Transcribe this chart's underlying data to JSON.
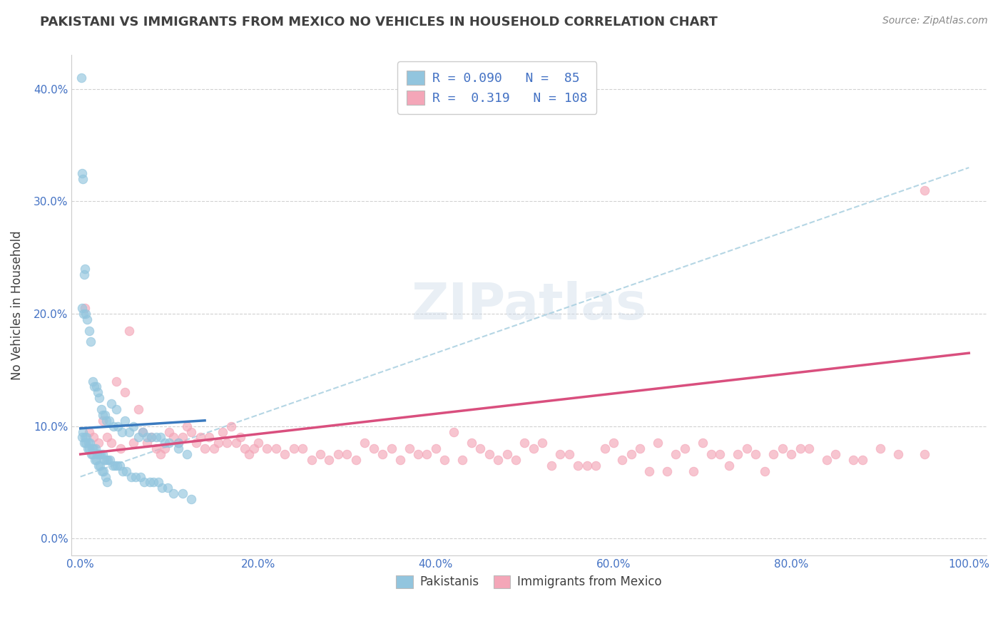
{
  "title": "PAKISTANI VS IMMIGRANTS FROM MEXICO NO VEHICLES IN HOUSEHOLD CORRELATION CHART",
  "source": "Source: ZipAtlas.com",
  "ylabel": "No Vehicles in Household",
  "watermark": "ZIPatlas",
  "blue_color": "#92c5de",
  "pink_color": "#f4a6b8",
  "blue_line_color": "#3a7abf",
  "pink_line_color": "#d94f7e",
  "blue_dash_color": "#a8cfe0",
  "title_color": "#404040",
  "source_color": "#888888",
  "axis_label_color": "#404040",
  "tick_color": "#4472c4",
  "grid_color": "#cccccc",
  "xlim": [
    -1,
    102
  ],
  "ylim": [
    -1.5,
    43
  ],
  "xlabel_tick_vals": [
    0,
    20,
    40,
    60,
    80,
    100
  ],
  "xlabel_ticks": [
    "0.0%",
    "20.0%",
    "40.0%",
    "60.0%",
    "80.0%",
    "100.0%"
  ],
  "ylabel_tick_vals": [
    0,
    10,
    20,
    30,
    40
  ],
  "ylabel_ticks": [
    "0.0%",
    "10.0%",
    "20.0%",
    "30.0%",
    "40.0%"
  ],
  "pakistanis_x": [
    0.3,
    0.5,
    0.7,
    0.9,
    1.1,
    1.3,
    1.5,
    1.7,
    1.9,
    2.1,
    2.3,
    2.5,
    2.7,
    2.9,
    3.1,
    3.3,
    3.6,
    3.9,
    4.1,
    4.4,
    4.8,
    5.2,
    5.7,
    6.2,
    6.8,
    7.2,
    7.8,
    8.2,
    8.8,
    9.2,
    9.8,
    10.5,
    11.5,
    12.5,
    0.2,
    0.4,
    0.6,
    0.8,
    1.0,
    1.2,
    1.4,
    1.6,
    1.8,
    2.0,
    2.2,
    2.4,
    2.6,
    2.8,
    3.0,
    3.5,
    4.0,
    5.0,
    6.0,
    7.0,
    8.0,
    9.0,
    10.0,
    11.0,
    12.0,
    0.15,
    0.35,
    0.55,
    0.75,
    0.95,
    1.15,
    1.35,
    1.55,
    1.75,
    1.95,
    2.15,
    2.35,
    2.55,
    2.75,
    2.95,
    3.2,
    3.7,
    4.2,
    4.7,
    5.5,
    6.5,
    7.5,
    8.5,
    9.5,
    11.0,
    0.1,
    0.2,
    0.3,
    0.4,
    0.5
  ],
  "pakistanis_y": [
    9.5,
    9.0,
    9.0,
    8.5,
    8.5,
    8.0,
    8.0,
    8.0,
    7.5,
    7.5,
    7.5,
    7.5,
    7.0,
    7.0,
    7.0,
    7.0,
    6.5,
    6.5,
    6.5,
    6.5,
    6.0,
    6.0,
    5.5,
    5.5,
    5.5,
    5.0,
    5.0,
    5.0,
    5.0,
    4.5,
    4.5,
    4.0,
    4.0,
    3.5,
    9.0,
    8.5,
    8.5,
    8.0,
    8.0,
    7.5,
    7.5,
    7.0,
    7.0,
    6.5,
    6.5,
    6.0,
    6.0,
    5.5,
    5.0,
    12.0,
    11.5,
    10.5,
    10.0,
    9.5,
    9.0,
    9.0,
    8.5,
    8.0,
    7.5,
    20.5,
    20.0,
    20.0,
    19.5,
    18.5,
    17.5,
    14.0,
    13.5,
    13.5,
    13.0,
    12.5,
    11.5,
    11.0,
    11.0,
    10.5,
    10.5,
    10.0,
    10.0,
    9.5,
    9.5,
    9.0,
    9.0,
    9.0,
    8.5,
    8.5,
    41.0,
    32.5,
    32.0,
    23.5,
    24.0
  ],
  "mexico_x": [
    0.5,
    1.0,
    2.0,
    2.5,
    3.0,
    4.0,
    5.0,
    5.5,
    6.0,
    7.0,
    8.0,
    9.0,
    10.0,
    11.0,
    12.0,
    13.0,
    14.0,
    15.0,
    16.0,
    17.0,
    18.0,
    19.0,
    20.0,
    22.0,
    24.0,
    26.0,
    28.0,
    30.0,
    32.0,
    33.0,
    35.0,
    37.0,
    38.0,
    40.0,
    42.0,
    44.0,
    45.0,
    46.0,
    48.0,
    50.0,
    51.0,
    52.0,
    54.0,
    55.0,
    56.0,
    58.0,
    59.0,
    60.0,
    61.0,
    62.0,
    63.0,
    64.0,
    65.0,
    67.0,
    68.0,
    70.0,
    71.0,
    72.0,
    74.0,
    75.0,
    76.0,
    78.0,
    79.0,
    80.0,
    82.0,
    84.0,
    85.0,
    87.0,
    88.0,
    90.0,
    92.0,
    95.0,
    1.5,
    3.5,
    4.5,
    6.5,
    7.5,
    8.5,
    9.5,
    10.5,
    11.5,
    12.5,
    13.5,
    14.5,
    15.5,
    16.5,
    17.5,
    18.5,
    19.5,
    21.0,
    23.0,
    25.0,
    27.0,
    29.0,
    31.0,
    34.0,
    36.0,
    39.0,
    41.0,
    43.0,
    47.0,
    49.0,
    53.0,
    57.0,
    66.0,
    69.0,
    73.0,
    77.0,
    81.0,
    95.0
  ],
  "mexico_y": [
    20.5,
    9.5,
    8.5,
    10.5,
    9.0,
    14.0,
    13.0,
    18.5,
    8.5,
    9.5,
    9.0,
    7.5,
    9.5,
    8.5,
    10.0,
    8.5,
    8.0,
    8.0,
    9.5,
    10.0,
    9.0,
    7.5,
    8.5,
    8.0,
    8.0,
    7.0,
    7.0,
    7.5,
    8.5,
    8.0,
    8.0,
    8.0,
    7.5,
    8.0,
    9.5,
    8.5,
    8.0,
    7.5,
    7.5,
    8.5,
    8.0,
    8.5,
    7.5,
    7.5,
    6.5,
    6.5,
    8.0,
    8.5,
    7.0,
    7.5,
    8.0,
    6.0,
    8.5,
    7.5,
    8.0,
    8.5,
    7.5,
    7.5,
    7.5,
    8.0,
    7.5,
    7.5,
    8.0,
    7.5,
    8.0,
    7.0,
    7.5,
    7.0,
    7.0,
    8.0,
    7.5,
    7.5,
    9.0,
    8.5,
    8.0,
    11.5,
    8.5,
    8.0,
    8.0,
    9.0,
    9.0,
    9.5,
    9.0,
    9.0,
    8.5,
    8.5,
    8.5,
    8.0,
    8.0,
    8.0,
    7.5,
    8.0,
    7.5,
    7.5,
    7.0,
    7.5,
    7.0,
    7.5,
    7.0,
    7.0,
    7.0,
    7.0,
    6.5,
    6.5,
    6.0,
    6.0,
    6.5,
    6.0,
    8.0,
    31.0
  ],
  "pk_trendline_x0": 0,
  "pk_trendline_x1": 14,
  "pk_trendline_y0": 9.8,
  "pk_trendline_y1": 10.5,
  "mx_trendline_x0": 0,
  "mx_trendline_x1": 100,
  "mx_trendline_y0": 7.5,
  "mx_trendline_y1": 16.5,
  "dash_x0": 0,
  "dash_x1": 100,
  "dash_y0": 5.5,
  "dash_y1": 33.0
}
